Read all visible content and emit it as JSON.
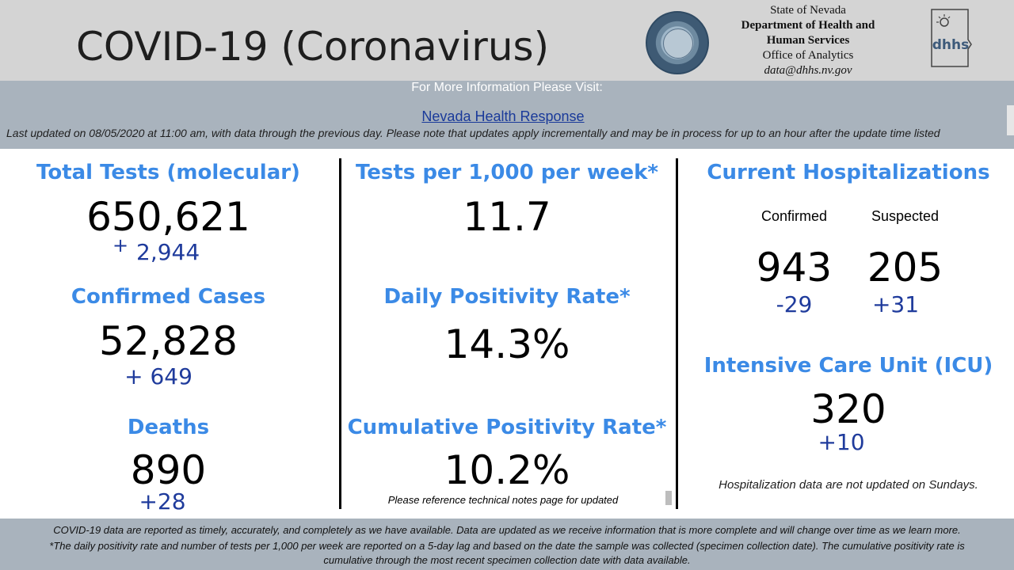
{
  "header": {
    "title": "COVID-19 (Coronavirus)",
    "agency": {
      "line1": "State of Nevada",
      "line2": "Department of Health and",
      "line3": "Human Services",
      "line4": "Office of Analytics",
      "email": "data@dhhs.nv.gov"
    },
    "logo_text": "dhhs"
  },
  "info": {
    "more_info": "For More Information Please Visit:",
    "link_text": "Nevada Health Response",
    "last_updated": "Last updated on 08/05/2020 at 11:00 am, with data through the previous day.  Please note that updates apply incrementally and may be in process for up to an hour after the update time listed"
  },
  "left": {
    "tests": {
      "title": "Total Tests (molecular)",
      "value": "650,621",
      "delta_sign": "+",
      "delta": "2,944"
    },
    "cases": {
      "title": "Confirmed Cases",
      "value": "52,828",
      "delta": "+ 649"
    },
    "deaths": {
      "title": "Deaths",
      "value": "890",
      "delta": "+28"
    }
  },
  "middle": {
    "tests_per_1000": {
      "title": "Tests per 1,000 per week*",
      "value": "11.7"
    },
    "daily_positivity": {
      "title": "Daily Positivity Rate*",
      "value": "14.3%"
    },
    "cumulative_positivity": {
      "title": "Cumulative Positivity Rate*",
      "value": "10.2%",
      "note": "Please reference technical notes page for updated"
    }
  },
  "right": {
    "hospitalizations": {
      "title": "Current Hospitalizations",
      "confirmed_label": "Confirmed",
      "suspected_label": "Suspected",
      "confirmed_value": "943",
      "suspected_value": "205",
      "confirmed_delta": "-29",
      "suspected_delta": "+31"
    },
    "icu": {
      "title": "Intensive Care Unit (ICU)",
      "value": "320",
      "delta": "+10"
    },
    "note": "Hospitalization data are not updated on Sundays."
  },
  "footer": {
    "line1": "COVID-19 data are reported as timely, accurately, and completely as we have available.  Data are updated as we receive information that is more complete and will change over time as we learn more.",
    "line2": "*The daily positivity rate and number of tests per 1,000 per week are reported on a 5-day lag and based on the date the sample was collected (specimen collection date).  The cumulative positivity rate is",
    "line3": "cumulative through the most recent specimen collection date with data available."
  },
  "colors": {
    "heading_blue": "#3b8ae6",
    "delta_blue": "#1f3b9c",
    "band_gray": "#a9b3bd",
    "header_gray": "#d4d4d4"
  }
}
